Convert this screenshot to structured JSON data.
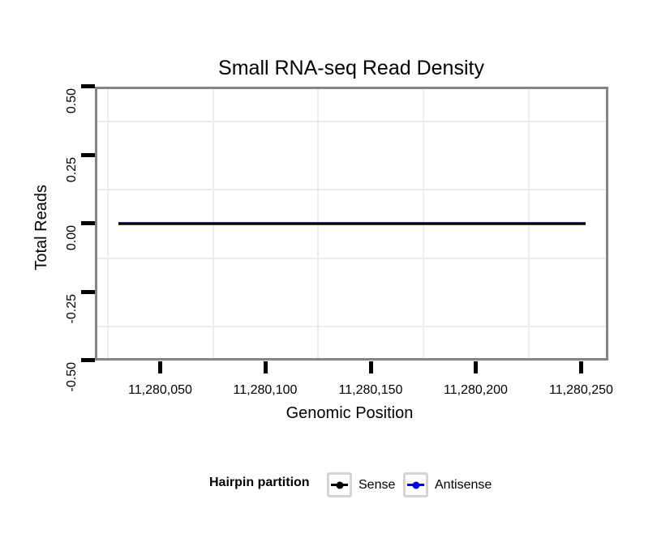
{
  "chart_data": {
    "type": "line",
    "title": "Small RNA-seq Read Density",
    "xlabel": "Genomic Position",
    "ylabel": "Total Reads",
    "xlim": [
      11280019,
      11280263
    ],
    "ylim": [
      -0.5,
      0.5
    ],
    "x_ticks": [
      {
        "value": 11280050,
        "label": "11,280,050"
      },
      {
        "value": 11280100,
        "label": "11,280,100"
      },
      {
        "value": 11280150,
        "label": "11,280,150"
      },
      {
        "value": 11280200,
        "label": "11,280,200"
      },
      {
        "value": 11280250,
        "label": "11,280,250"
      }
    ],
    "y_ticks": [
      {
        "value": 0.5,
        "label": "0.50"
      },
      {
        "value": 0.25,
        "label": "0.25"
      },
      {
        "value": 0.0,
        "label": "0.00"
      },
      {
        "value": -0.25,
        "label": "-0.25"
      },
      {
        "value": -0.5,
        "label": "-0.50"
      }
    ],
    "grid": {
      "minor_gridlines_only": true,
      "color": "#ececec"
    },
    "series": [
      {
        "name": "Sense",
        "color": "#000000",
        "x": [
          11280030,
          11280252
        ],
        "y": [
          0,
          0
        ]
      },
      {
        "name": "Antisense",
        "color": "#0000EE",
        "x": [
          11280030,
          11280252
        ],
        "y": [
          0,
          0
        ]
      }
    ],
    "legend_position": "bottom"
  },
  "legend": {
    "title": "Hairpin partition",
    "items": [
      {
        "label": "Sense",
        "color": "#000000"
      },
      {
        "label": "Antisense",
        "color": "#0000EE"
      }
    ]
  },
  "colors": {
    "panel_border": "#858585",
    "tick": "#000000",
    "gridline": "#ececec",
    "legend_key_border": "#d5d5d5"
  }
}
